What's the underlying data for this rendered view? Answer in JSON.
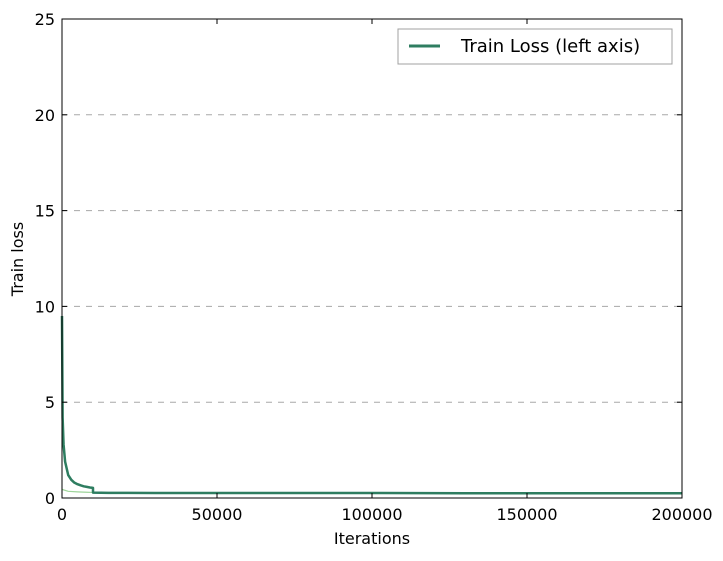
{
  "chart_data": {
    "type": "line",
    "title": "",
    "xlabel": "Iterations",
    "ylabel": "Train loss",
    "xlim": [
      0,
      200000
    ],
    "ylim": [
      0,
      25
    ],
    "x_ticks": [
      0,
      50000,
      100000,
      150000,
      200000
    ],
    "y_ticks": [
      0,
      5,
      10,
      15,
      20,
      25
    ],
    "x_tick_labels": [
      "0",
      "50000",
      "100000",
      "150000",
      "200000"
    ],
    "y_tick_labels": [
      "0",
      "5",
      "10",
      "15",
      "20",
      "25"
    ],
    "grid": "y-dashed",
    "legend": {
      "position": "top-right",
      "entries": [
        {
          "label": "Train Loss (left axis)",
          "color": "#2e7d60"
        }
      ]
    },
    "series": [
      {
        "name": "Train Loss (left axis)",
        "color": "#2e7d60",
        "x": [
          0,
          200,
          500,
          1000,
          2000,
          3000,
          4000,
          5000,
          6000,
          7000,
          8000,
          9000,
          9999,
          10001,
          15000,
          20000,
          30000,
          50000,
          70000,
          100000,
          130000,
          150000,
          180000,
          200000
        ],
        "y": [
          9.5,
          4.2,
          2.8,
          1.9,
          1.2,
          0.95,
          0.8,
          0.72,
          0.66,
          0.61,
          0.58,
          0.55,
          0.53,
          0.28,
          0.27,
          0.27,
          0.26,
          0.26,
          0.26,
          0.26,
          0.25,
          0.25,
          0.25,
          0.25
        ]
      },
      {
        "name": "",
        "color": "#9ed49a",
        "x": [
          0,
          2000,
          5000,
          8000,
          10000,
          11000,
          13000
        ],
        "y": [
          0.45,
          0.35,
          0.32,
          0.3,
          0.29,
          0.28,
          0.27
        ]
      }
    ]
  }
}
